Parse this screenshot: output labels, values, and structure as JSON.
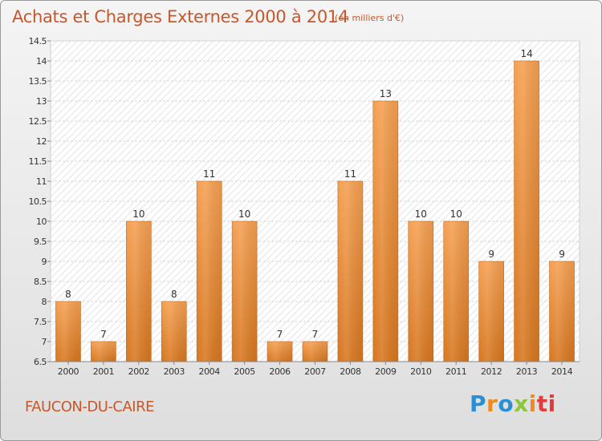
{
  "chart_data": {
    "type": "bar",
    "title": "Achats et Charges Externes 2000 à 2014",
    "subtitle": "(en milliers d'€)",
    "categories": [
      "2000",
      "2001",
      "2002",
      "2003",
      "2004",
      "2005",
      "2006",
      "2007",
      "2008",
      "2009",
      "2010",
      "2011",
      "2012",
      "2013",
      "2014"
    ],
    "values": [
      8,
      7,
      10,
      8,
      11,
      10,
      7,
      7,
      11,
      13,
      10,
      10,
      9,
      14,
      9
    ],
    "data_labels": [
      "8",
      "7",
      "10",
      "8",
      "11",
      "10",
      "7",
      "7",
      "11",
      "13",
      "10",
      "10",
      "9",
      "14",
      "9"
    ],
    "ylim": [
      6.5,
      14.5
    ],
    "yticks": [
      "6.5",
      "7",
      "7.5",
      "8",
      "8.5",
      "9",
      "9.5",
      "10",
      "10.5",
      "11",
      "11.5",
      "12",
      "12.5",
      "13",
      "13.5",
      "14",
      "14.5"
    ],
    "grid": true,
    "bar_color": "#f0923a"
  },
  "footer": {
    "town": "FAUCON-DU-CAIRE",
    "brand": [
      "P",
      "r",
      "o",
      "x",
      "i",
      "ti"
    ]
  }
}
